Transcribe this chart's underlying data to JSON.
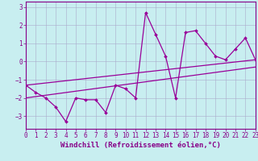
{
  "xlabel": "Windchill (Refroidissement éolien,°C)",
  "background_color": "#c8eef0",
  "line_color": "#990099",
  "x_data": [
    0,
    1,
    2,
    3,
    4,
    5,
    6,
    7,
    8,
    9,
    10,
    11,
    12,
    13,
    14,
    15,
    16,
    17,
    18,
    19,
    20,
    21,
    22,
    23
  ],
  "y_data": [
    -1.3,
    -1.7,
    -2.0,
    -2.5,
    -3.3,
    -2.0,
    -2.1,
    -2.1,
    -2.8,
    -1.3,
    -1.5,
    -2.0,
    2.7,
    1.5,
    0.3,
    -2.0,
    1.6,
    1.7,
    1.0,
    0.3,
    0.1,
    0.7,
    1.3,
    0.1
  ],
  "trend1_x": [
    0,
    23
  ],
  "trend1_y": [
    -1.3,
    0.1
  ],
  "trend2_x": [
    0,
    23
  ],
  "trend2_y": [
    -2.0,
    -0.3
  ],
  "xlim": [
    0,
    23
  ],
  "ylim": [
    -3.7,
    3.3
  ],
  "yticks": [
    -3,
    -2,
    -1,
    0,
    1,
    2,
    3
  ],
  "xticks": [
    0,
    1,
    2,
    3,
    4,
    5,
    6,
    7,
    8,
    9,
    10,
    11,
    12,
    13,
    14,
    15,
    16,
    17,
    18,
    19,
    20,
    21,
    22,
    23
  ],
  "font_color": "#880088",
  "grid_color": "#aaaacc",
  "tick_fontsize": 5.5,
  "label_fontsize": 6.5
}
